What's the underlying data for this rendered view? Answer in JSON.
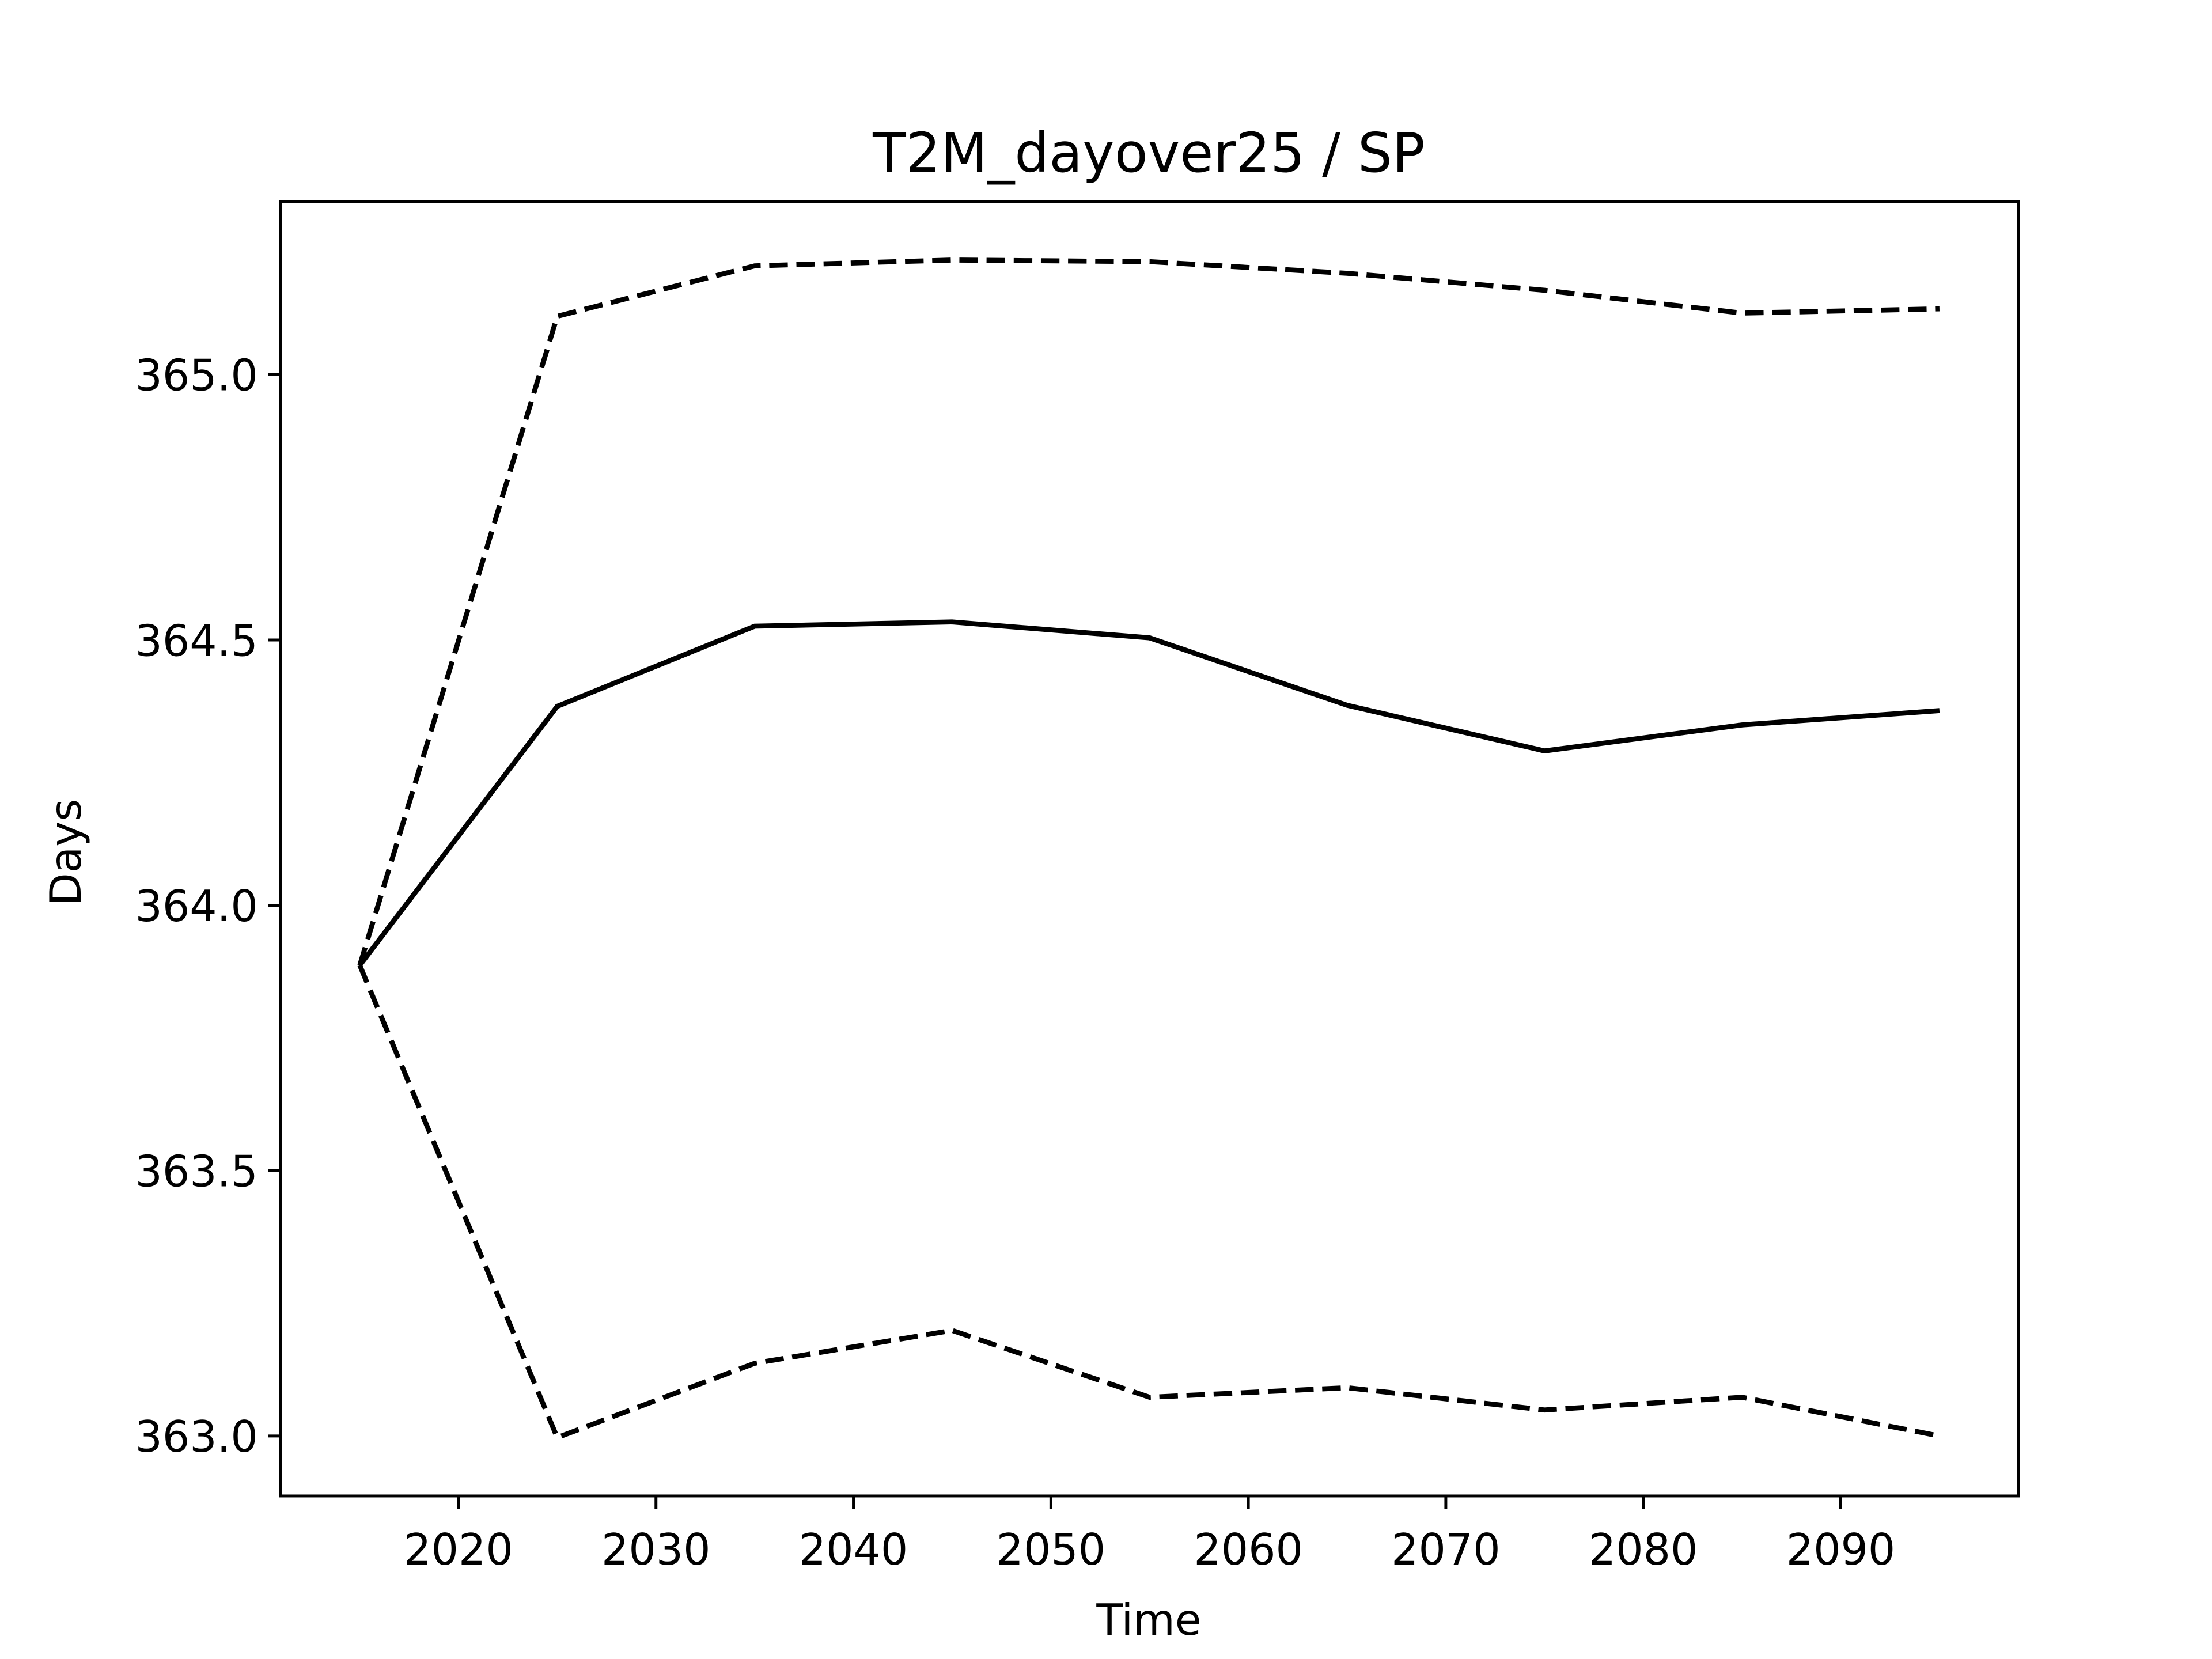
{
  "chart_data": {
    "type": "line",
    "title": "T2M_dayover25 / SP",
    "x_label": "Time",
    "y_label": "Days",
    "x": [
      2015,
      2025,
      2035,
      2045,
      2055,
      2065,
      2075,
      2085,
      2095
    ],
    "series": [
      {
        "color": "#000000",
        "linestyle": "solid",
        "values": [
          363.887,
          364.375,
          364.526,
          364.534,
          364.504,
          364.377,
          364.291,
          364.34,
          364.367
        ]
      },
      {
        "color": "#000000",
        "linestyle": "dashed",
        "values": [
          363.887,
          365.11,
          365.205,
          365.216,
          365.213,
          365.191,
          365.159,
          365.116,
          365.124
        ]
      },
      {
        "color": "#000000",
        "linestyle": "dashed",
        "values": [
          363.887,
          362.997,
          363.137,
          363.199,
          363.073,
          363.091,
          363.049,
          363.073,
          363.0
        ]
      }
    ],
    "xlim": [
      2011,
      2099
    ],
    "ylim": [
      362.887,
      365.326
    ],
    "xticks": [
      2020,
      2030,
      2040,
      2050,
      2060,
      2070,
      2080,
      2090
    ],
    "yticks": [
      {
        "value": 363,
        "label": "363.0"
      },
      363.5,
      {
        "value": 364,
        "label": "364.0"
      },
      364.5,
      {
        "value": 365,
        "label": "365.0"
      }
    ],
    "grid": false
  }
}
